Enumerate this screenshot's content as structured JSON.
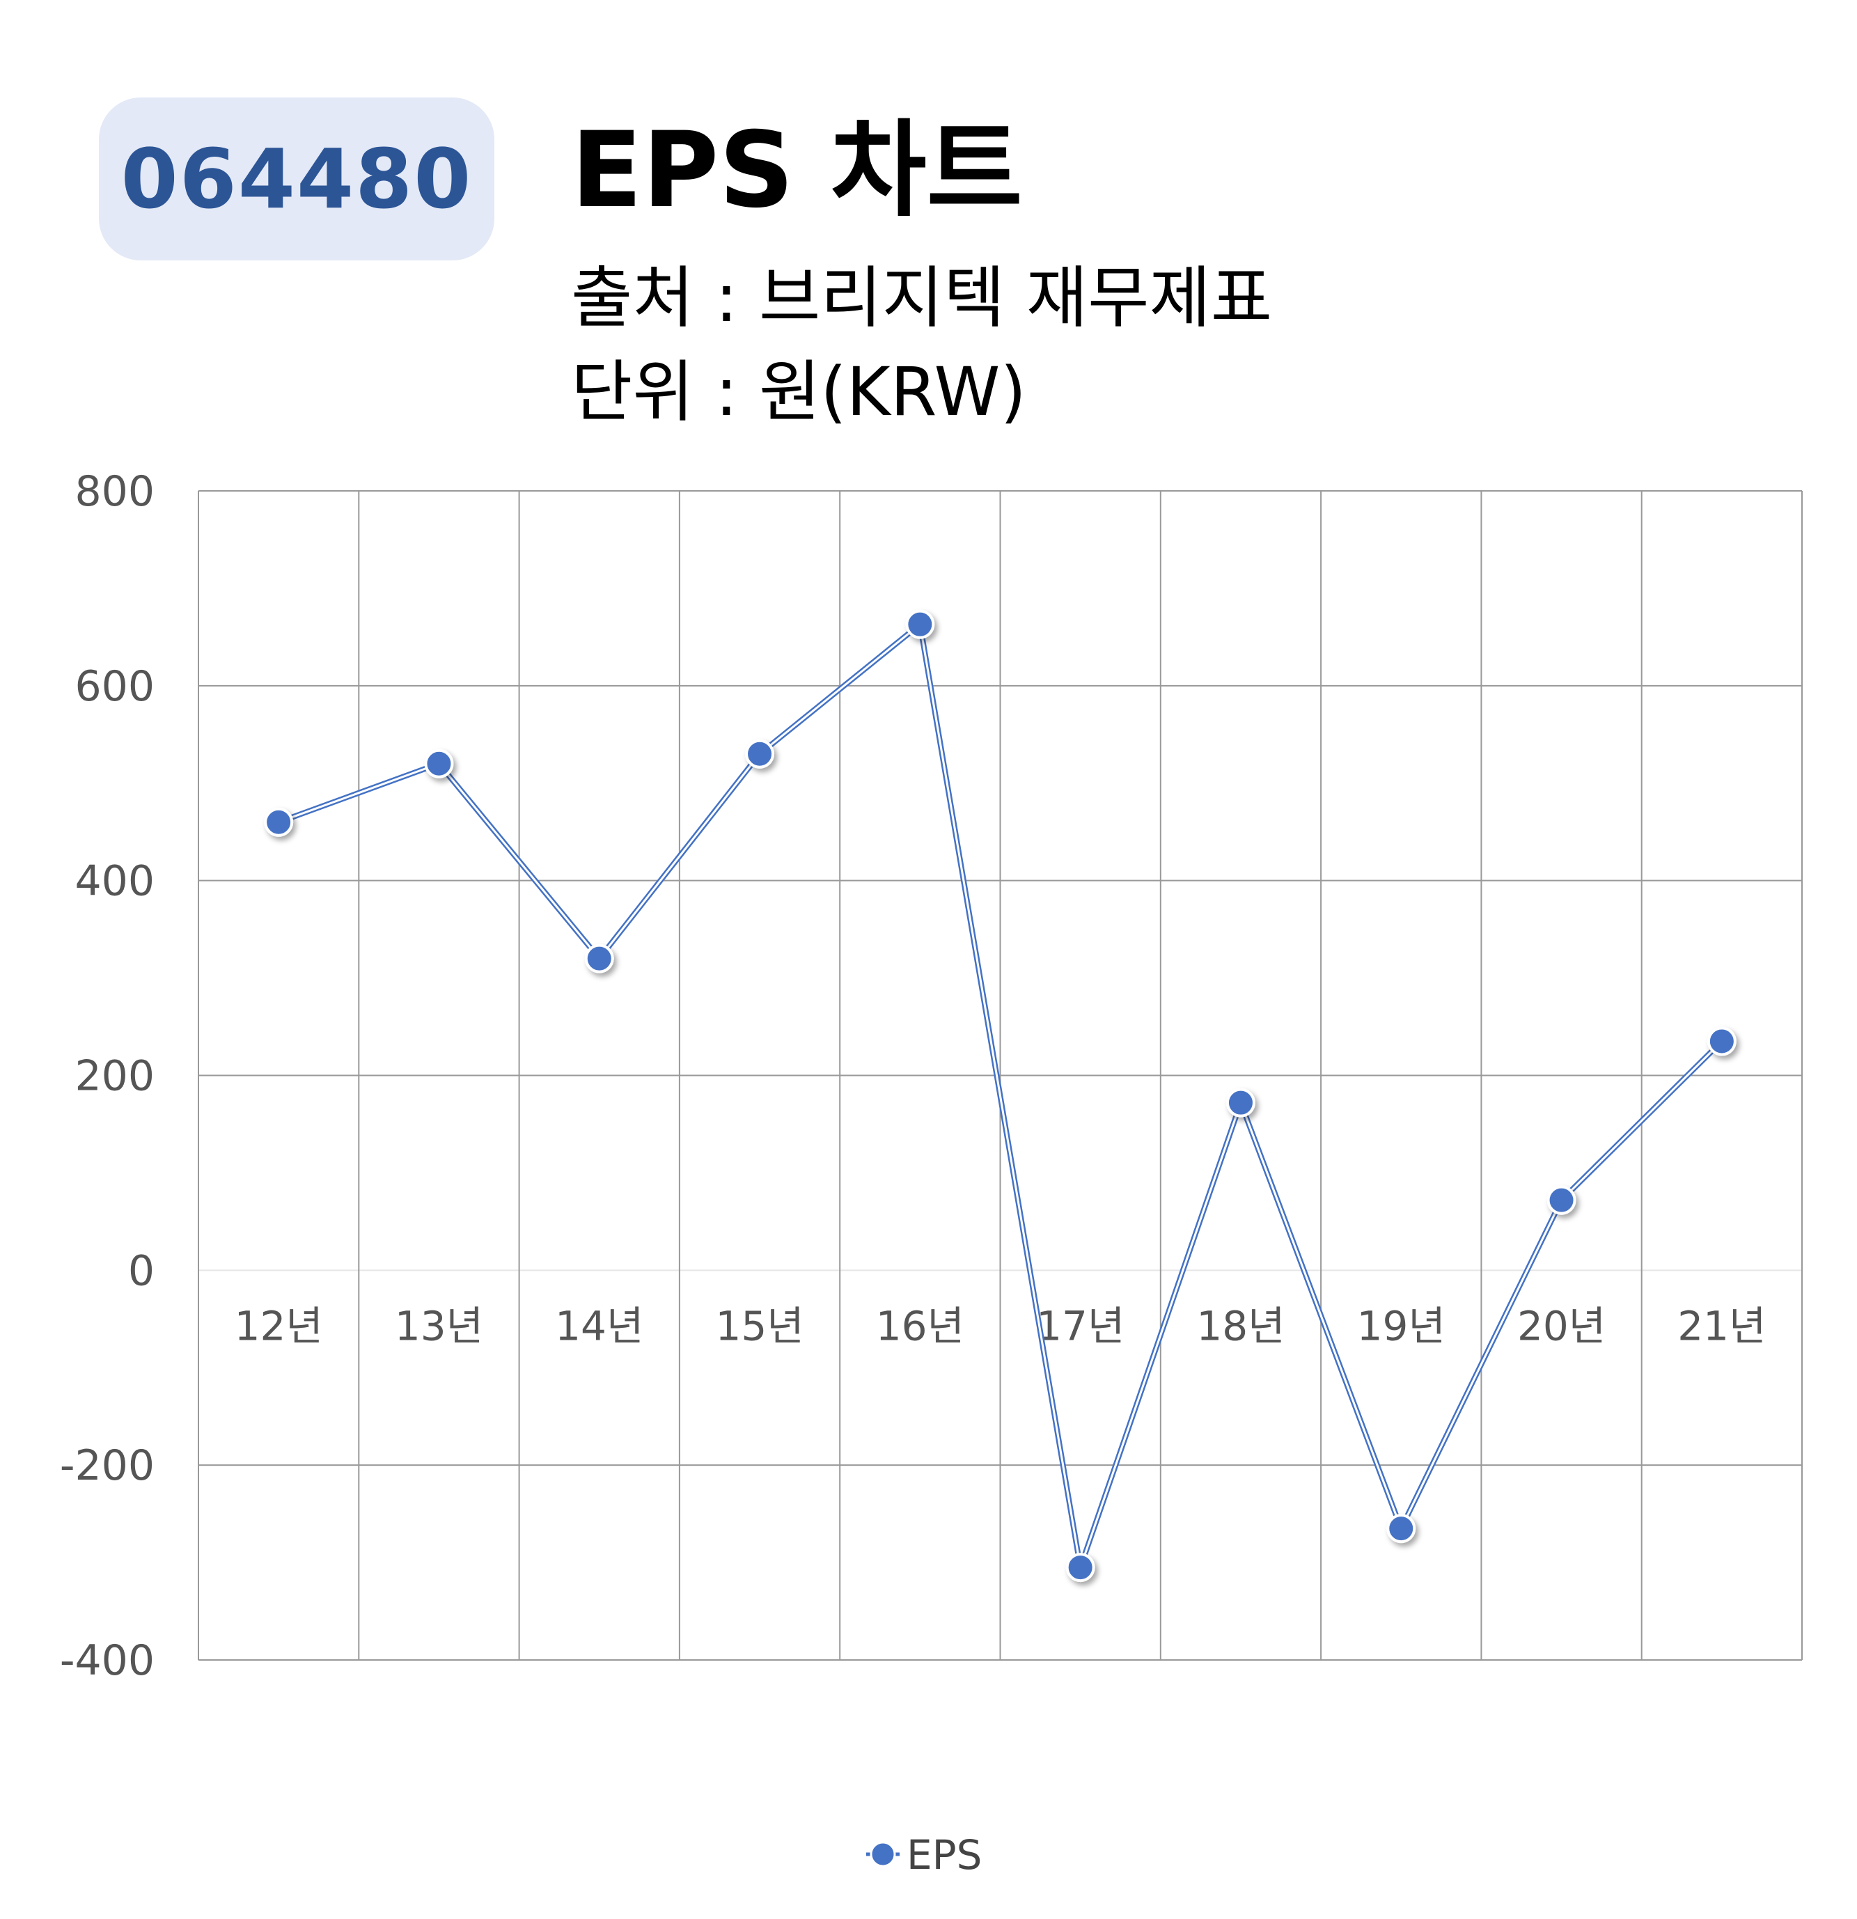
{
  "header": {
    "code": "064480",
    "title": "EPS 차트",
    "source": "출처 : 브리지텍 재무제표",
    "unit": "단위 : 원(KRW)"
  },
  "colors": {
    "series": "#4472c4",
    "badge_bg": "#e3e9f6",
    "badge_text": "#2c5596",
    "grid": "#999999"
  },
  "chart_data": {
    "type": "line",
    "title": "EPS 차트",
    "categories": [
      "12년",
      "13년",
      "14년",
      "15년",
      "16년",
      "17년",
      "18년",
      "19년",
      "20년",
      "21년"
    ],
    "series": [
      {
        "name": "EPS",
        "values": [
          460,
          520,
          320,
          530,
          663,
          -305,
          172,
          -265,
          72,
          235
        ]
      }
    ],
    "ylim": [
      -400,
      800
    ],
    "yticks": [
      800,
      600,
      400,
      200,
      0,
      -200,
      -400
    ],
    "grid": true,
    "legend": "bottom-center"
  }
}
